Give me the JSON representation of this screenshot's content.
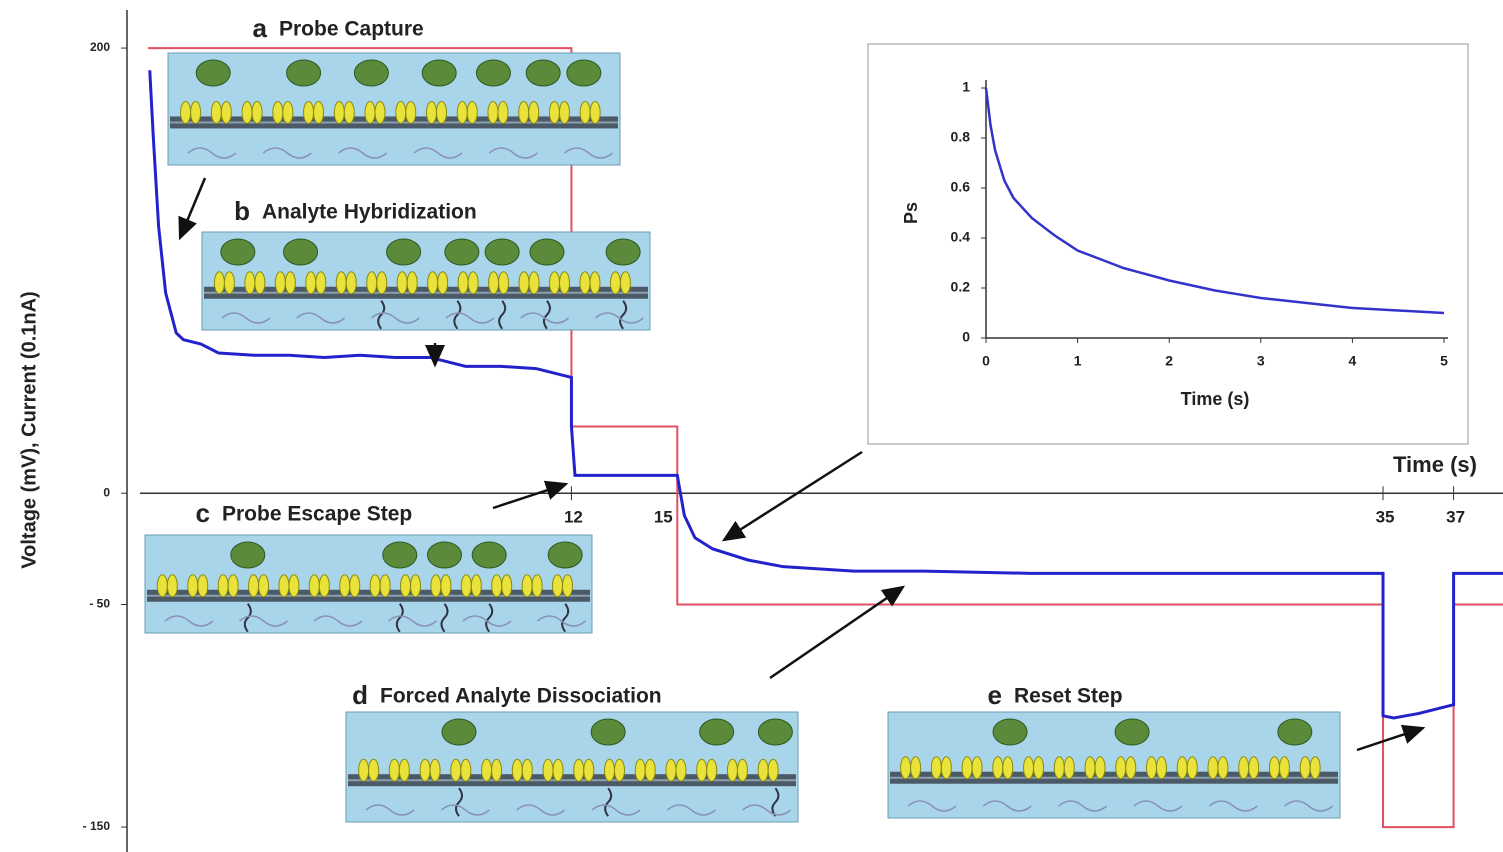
{
  "chart_data": [
    {
      "type": "line",
      "y_label": "Voltage (mV), Current (0.1nA)",
      "x_label": "Time (s)",
      "xlim": [
        0,
        38.4
      ],
      "ylim": [
        -161.2,
        221.6
      ],
      "xticks": [
        12,
        15,
        35,
        37
      ],
      "yticks": [
        200,
        0,
        {
          "value": -50,
          "label": "- 50"
        },
        {
          "value": -150,
          "label": "- 150"
        }
      ],
      "series": [
        {
          "color": "#e05060",
          "x": [
            0,
            12,
            12,
            15,
            15,
            35,
            35,
            37,
            37,
            38.4
          ],
          "values": [
            200,
            200,
            30,
            30,
            -50,
            -50,
            -150,
            -150,
            -50,
            -50
          ]
        },
        {
          "color": "#2222cc",
          "x": [
            0.05,
            0.15,
            0.3,
            0.5,
            0.8,
            1,
            1.5,
            2,
            3,
            4,
            5,
            6,
            7,
            8,
            9,
            10,
            11,
            12,
            12,
            12.1,
            15,
            15.2,
            15.5,
            16,
            17,
            18,
            20,
            22,
            25,
            30,
            35,
            35,
            35.3,
            36,
            37,
            37,
            38.4
          ],
          "values": [
            190,
            160,
            120,
            90,
            72,
            69,
            67,
            63,
            62,
            62,
            61,
            62,
            61,
            61,
            57,
            57,
            56,
            52,
            30,
            8,
            8,
            -10,
            -20,
            -25,
            -30,
            -33,
            -35,
            -35,
            -36,
            -36,
            -36,
            -100,
            -101,
            -99,
            -95,
            -36,
            -36
          ]
        }
      ]
    },
    {
      "type": "line",
      "y_label": "Ps",
      "x_label": "Time (s)",
      "xlim": [
        0,
        5
      ],
      "ylim": [
        0,
        1
      ],
      "xticks": [
        0,
        1,
        2,
        3,
        4,
        5
      ],
      "yticks": [
        0,
        0.2,
        0.4,
        0.6,
        0.8,
        1
      ],
      "series": [
        {
          "color": "#3333cc",
          "x": [
            0,
            0.05,
            0.1,
            0.2,
            0.3,
            0.5,
            0.75,
            1,
            1.5,
            2,
            2.5,
            3,
            3.5,
            4,
            4.5,
            5
          ],
          "values": [
            1,
            0.85,
            0.75,
            0.63,
            0.56,
            0.48,
            0.41,
            0.35,
            0.28,
            0.23,
            0.19,
            0.16,
            0.14,
            0.12,
            0.11,
            0.1
          ]
        }
      ]
    }
  ],
  "panels": [
    {
      "letter": "a",
      "title": "Probe Capture"
    },
    {
      "letter": "b",
      "title": "Analyte Hybridization"
    },
    {
      "letter": "c",
      "title": "Probe Escape Step"
    },
    {
      "letter": "d",
      "title": "Forced Analyte Dissociation"
    },
    {
      "letter": "e",
      "title": "Reset Step"
    }
  ]
}
